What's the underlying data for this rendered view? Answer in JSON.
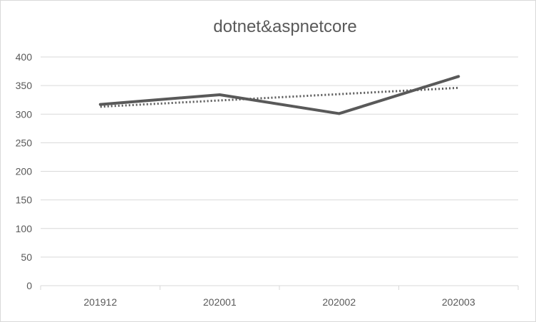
{
  "chart_data": {
    "type": "line",
    "title": "dotnet&aspnetcore",
    "categories": [
      "201912",
      "202001",
      "202002",
      "202003"
    ],
    "series": [
      {
        "values": [
          317,
          334,
          301,
          366
        ],
        "color": "#595959",
        "style": "solid"
      }
    ],
    "trendline": {
      "type": "linear",
      "values": [
        313,
        324,
        335,
        346
      ],
      "color": "#595959",
      "style": "dotted"
    },
    "ylim": [
      0,
      400
    ],
    "yticks": [
      0,
      50,
      100,
      150,
      200,
      250,
      300,
      350,
      400
    ],
    "grid": true,
    "legend": "none",
    "colors": {
      "axis": "#d9d9d9",
      "grid": "#d9d9d9",
      "text": "#595959"
    }
  }
}
